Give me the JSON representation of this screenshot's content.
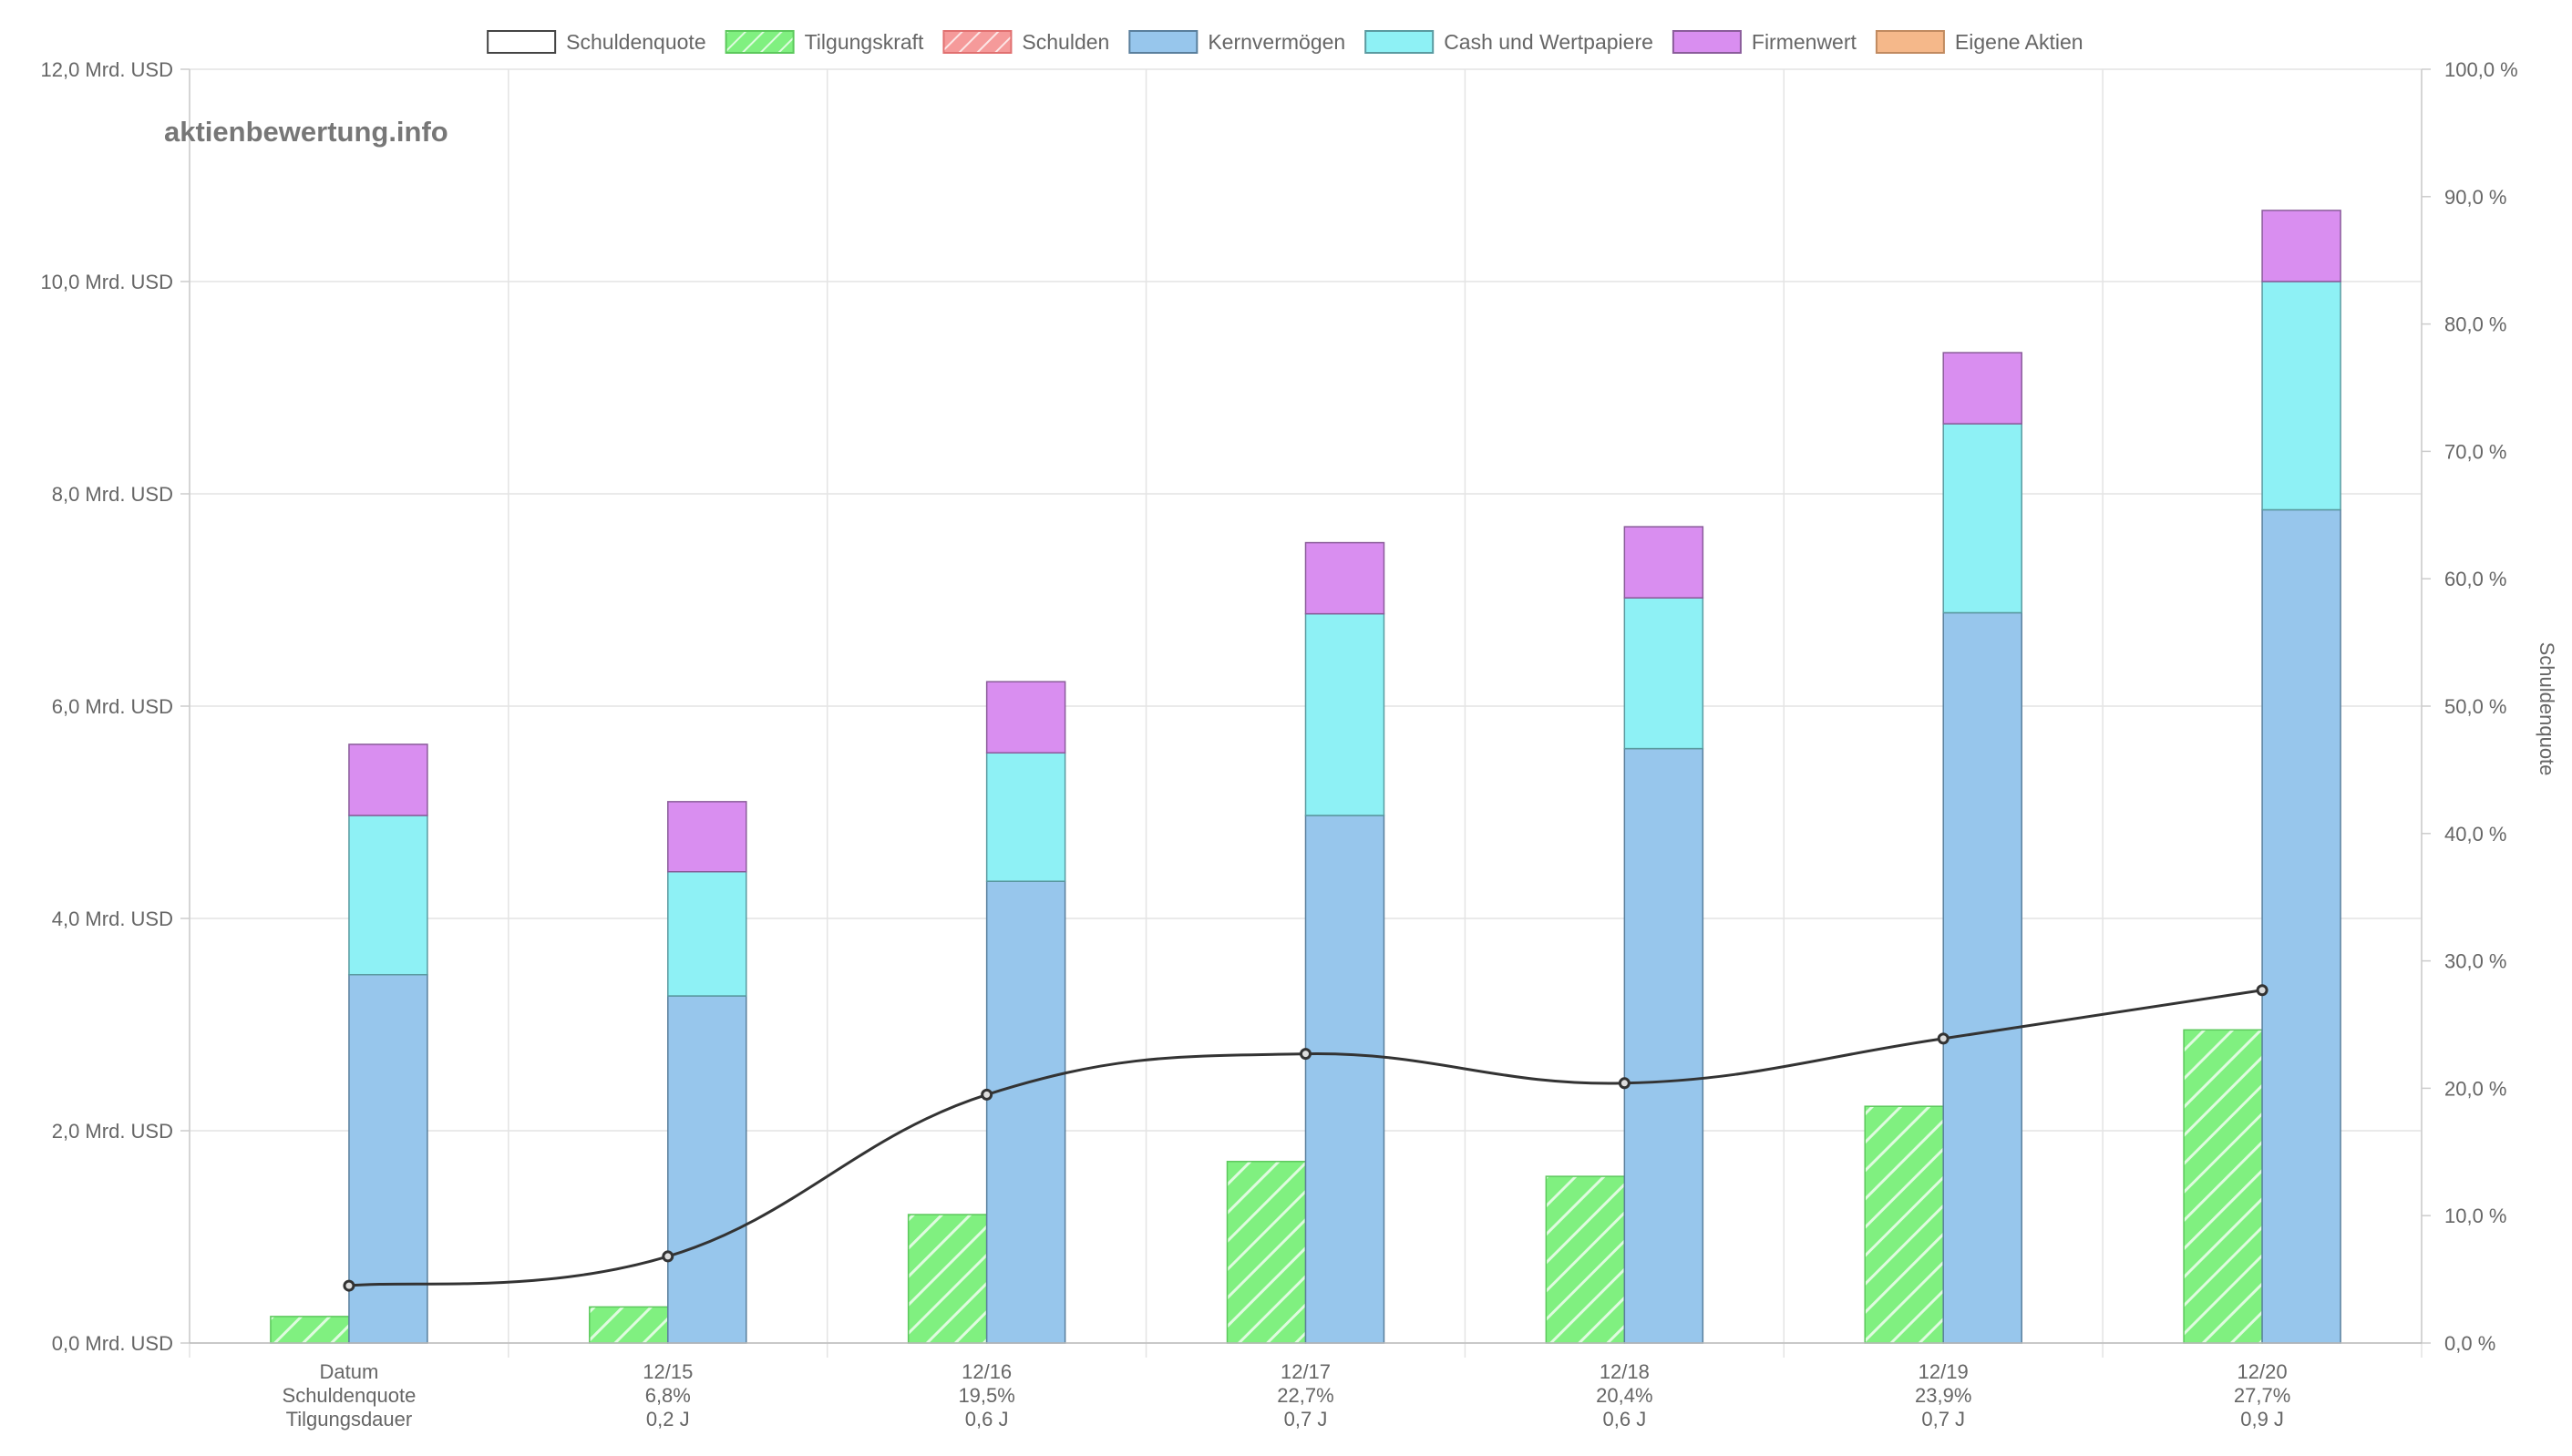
{
  "watermark": "aktienbewertung.info",
  "legend": [
    {
      "label": "Schuldenquote",
      "fill": "#ffffff",
      "stroke": "#444444",
      "hatch": false
    },
    {
      "label": "Tilgungskraft",
      "fill": "#80f080",
      "stroke": "#5cc85c",
      "hatch": true
    },
    {
      "label": "Schulden",
      "fill": "#f59a9a",
      "stroke": "#e07070",
      "hatch": true
    },
    {
      "label": "Kernvermögen",
      "fill": "#97c6ec",
      "stroke": "#5a7f9c",
      "hatch": false
    },
    {
      "label": "Cash und Wertpapiere",
      "fill": "#8ef1f5",
      "stroke": "#5a9aa0",
      "hatch": false
    },
    {
      "label": "Firmenwert",
      "fill": "#d98ef0",
      "stroke": "#8a5c9a",
      "hatch": false
    },
    {
      "label": "Eigene Aktien",
      "fill": "#f5b88a",
      "stroke": "#c08a60",
      "hatch": false
    }
  ],
  "chart_data": {
    "type": "bar",
    "categories": [
      [
        "Datum",
        "Schuldenquote",
        "Tilgungsdauer"
      ],
      [
        "12/15",
        "6,8%",
        "0,2 J"
      ],
      [
        "12/16",
        "19,5%",
        "0,6 J"
      ],
      [
        "12/17",
        "22,7%",
        "0,7 J"
      ],
      [
        "12/18",
        "20,4%",
        "0,6 J"
      ],
      [
        "12/19",
        "23,9%",
        "0,7 J"
      ],
      [
        "12/20",
        "27,7%",
        "0,9 J"
      ]
    ],
    "series": [
      {
        "name": "Tilgungskraft",
        "axis": "left",
        "stack": "a",
        "values": [
          0.25,
          0.34,
          1.21,
          1.71,
          1.57,
          2.23,
          2.95
        ]
      },
      {
        "name": "Kernvermögen",
        "axis": "left",
        "stack": "b",
        "values": [
          3.47,
          3.27,
          4.35,
          4.97,
          5.6,
          6.88,
          7.85
        ]
      },
      {
        "name": "Cash und Wertpapiere",
        "axis": "left",
        "stack": "b",
        "values": [
          1.5,
          1.17,
          1.21,
          1.9,
          1.42,
          1.78,
          2.15
        ]
      },
      {
        "name": "Firmenwert",
        "axis": "left",
        "stack": "b",
        "values": [
          0.67,
          0.66,
          0.67,
          0.67,
          0.67,
          0.67,
          0.67
        ]
      },
      {
        "name": "Schuldenquote",
        "axis": "right",
        "type": "line",
        "values": [
          4.5,
          6.8,
          19.5,
          22.7,
          20.4,
          23.9,
          27.7
        ]
      }
    ],
    "left_axis": {
      "min": 0,
      "max": 12,
      "step": 2,
      "tick_labels": [
        "0,0 Mrd. USD",
        "2,0 Mrd. USD",
        "4,0 Mrd. USD",
        "6,0 Mrd. USD",
        "8,0 Mrd. USD",
        "10,0 Mrd. USD",
        "12,0 Mrd. USD"
      ]
    },
    "right_axis": {
      "min": 0,
      "max": 100,
      "step": 10,
      "title": "Schuldenquote",
      "tick_labels": [
        "0,0 %",
        "10,0 %",
        "20,0 %",
        "30,0 %",
        "40,0 %",
        "50,0 %",
        "60,0 %",
        "70,0 %",
        "80,0 %",
        "90,0 %",
        "100,0 %"
      ]
    },
    "grid": true,
    "legend_position": "top"
  }
}
